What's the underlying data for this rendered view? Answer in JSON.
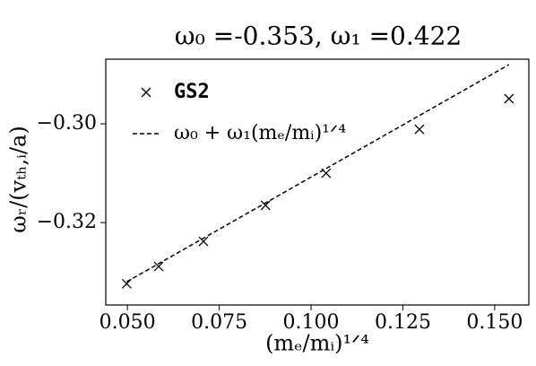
{
  "chart_data": {
    "type": "scatter",
    "title": "ω₀ =-0.353, ω₁ =0.422",
    "x_label": "(mₑ/mᵢ)¹ᐟ⁴",
    "y_label": "ωᵣ/(vₜₕ,ᵢ/a)",
    "xlim": [
      0.0441,
      0.1593
    ],
    "ylim": [
      -0.3367,
      -0.2869
    ],
    "xticks": [
      {
        "value": 0.05,
        "label": "0.050"
      },
      {
        "value": 0.075,
        "label": "0.075"
      },
      {
        "value": 0.1,
        "label": "0.100"
      },
      {
        "value": 0.125,
        "label": "0.125"
      },
      {
        "value": 0.15,
        "label": "0.150"
      }
    ],
    "yticks": [
      {
        "value": -0.3,
        "label": "−0.30"
      },
      {
        "value": -0.32,
        "label": "−0.32"
      }
    ],
    "legend": "upper left",
    "series": [
      {
        "name": "GS2",
        "type": "scatter",
        "color": "#000000",
        "x": [
          0.0498,
          0.0585,
          0.0707,
          0.0876,
          0.1041,
          0.1295,
          0.1539
        ],
        "values": [
          -0.3324,
          -0.3289,
          -0.3238,
          -0.3165,
          -0.31,
          -0.3011,
          -0.2949
        ]
      },
      {
        "name": "ω₀ + ω₁(mₑ/mᵢ)¹ᐟ⁴",
        "type": "line",
        "color": "#000000",
        "dashed": true,
        "x": [
          0.0498,
          0.1539
        ],
        "values": [
          -0.332,
          -0.288
        ]
      }
    ]
  }
}
